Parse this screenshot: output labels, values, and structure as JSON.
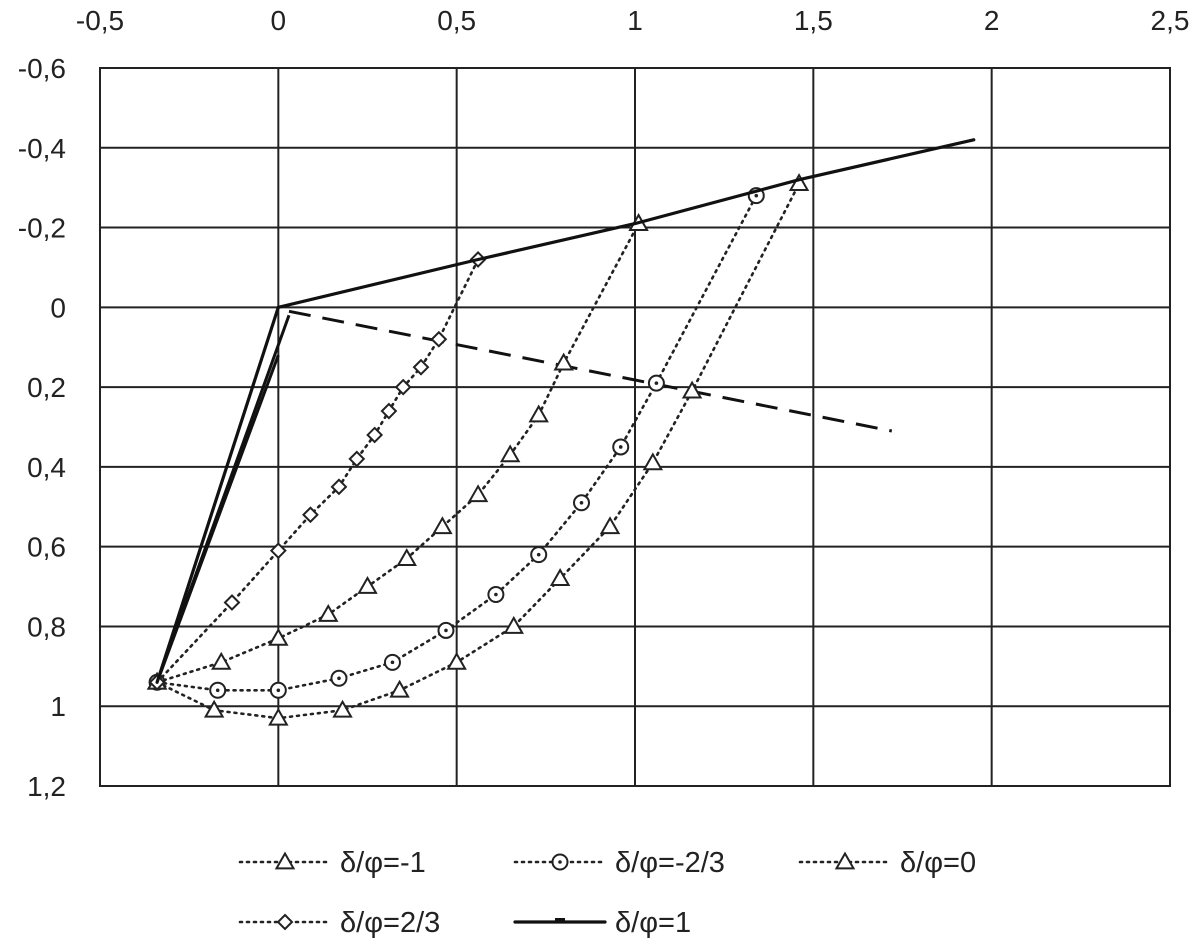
{
  "chart_data": {
    "type": "line",
    "title": "",
    "xlabel": "",
    "ylabel": "",
    "xlim": [
      -0.5,
      2.5
    ],
    "ylim": [
      -0.6,
      1.2
    ],
    "y_inverted": true,
    "x_axis_position": "top",
    "grid": true,
    "legend_position": "bottom",
    "x_ticks": [
      {
        "value": -0.5,
        "label": "-0,5"
      },
      {
        "value": 0,
        "label": "0"
      },
      {
        "value": 0.5,
        "label": "0,5"
      },
      {
        "value": 1,
        "label": "1"
      },
      {
        "value": 1.5,
        "label": "1,5"
      },
      {
        "value": 2,
        "label": "2"
      },
      {
        "value": 2.5,
        "label": "2,5"
      }
    ],
    "y_ticks": [
      {
        "value": -0.6,
        "label": "-0,6"
      },
      {
        "value": -0.4,
        "label": "-0,4"
      },
      {
        "value": -0.2,
        "label": "-0,2"
      },
      {
        "value": 0,
        "label": "0"
      },
      {
        "value": 0.2,
        "label": "0,2"
      },
      {
        "value": 0.4,
        "label": "0,4"
      },
      {
        "value": 0.6,
        "label": "0,6"
      },
      {
        "value": 0.8,
        "label": "0,8"
      },
      {
        "value": 1,
        "label": "1"
      },
      {
        "value": 1.2,
        "label": "1,2"
      }
    ],
    "series": [
      {
        "name": "δ/φ=-1",
        "marker": "triangle",
        "style": "dotted",
        "color": "#222222",
        "points": [
          [
            -0.34,
            0.94
          ],
          [
            -0.18,
            1.01
          ],
          [
            0,
            1.03
          ],
          [
            0.18,
            1.01
          ],
          [
            0.34,
            0.96
          ],
          [
            0.5,
            0.89
          ],
          [
            0.66,
            0.8
          ],
          [
            0.79,
            0.68
          ],
          [
            0.93,
            0.55
          ],
          [
            1.05,
            0.39
          ],
          [
            1.16,
            0.21
          ],
          [
            1.46,
            -0.31
          ]
        ]
      },
      {
        "name": "δ/φ=-2/3",
        "marker": "circle",
        "style": "dotted",
        "color": "#222222",
        "points": [
          [
            -0.34,
            0.94
          ],
          [
            -0.17,
            0.96
          ],
          [
            0,
            0.96
          ],
          [
            0.17,
            0.93
          ],
          [
            0.32,
            0.89
          ],
          [
            0.47,
            0.81
          ],
          [
            0.61,
            0.72
          ],
          [
            0.73,
            0.62
          ],
          [
            0.85,
            0.49
          ],
          [
            0.96,
            0.35
          ],
          [
            1.06,
            0.19
          ],
          [
            1.34,
            -0.28
          ]
        ]
      },
      {
        "name": "δ/φ=0",
        "marker": "triangle",
        "style": "dotted",
        "color": "#222222",
        "points": [
          [
            -0.34,
            0.94
          ],
          [
            -0.16,
            0.89
          ],
          [
            0,
            0.83
          ],
          [
            0.14,
            0.77
          ],
          [
            0.25,
            0.7
          ],
          [
            0.36,
            0.63
          ],
          [
            0.46,
            0.55
          ],
          [
            0.56,
            0.47
          ],
          [
            0.65,
            0.37
          ],
          [
            0.73,
            0.27
          ],
          [
            0.8,
            0.14
          ],
          [
            1.01,
            -0.21
          ]
        ]
      },
      {
        "name": "δ/φ=2/3",
        "marker": "diamond",
        "style": "dotted",
        "color": "#222222",
        "points": [
          [
            -0.34,
            0.94
          ],
          [
            -0.13,
            0.74
          ],
          [
            0,
            0.61
          ],
          [
            0.09,
            0.52
          ],
          [
            0.17,
            0.45
          ],
          [
            0.22,
            0.38
          ],
          [
            0.27,
            0.32
          ],
          [
            0.31,
            0.26
          ],
          [
            0.35,
            0.2
          ],
          [
            0.4,
            0.15
          ],
          [
            0.45,
            0.08
          ],
          [
            0.56,
            -0.12
          ]
        ]
      },
      {
        "name": "δ/φ=1",
        "marker": "none",
        "style": "solid",
        "color": "#111111",
        "points": [
          [
            -0.34,
            0.94
          ],
          [
            0,
            0
          ],
          [
            0.56,
            -0.12
          ],
          [
            1.0,
            -0.21
          ],
          [
            1.46,
            -0.32
          ],
          [
            1.95,
            -0.42
          ]
        ]
      }
    ],
    "extra_lines": [
      {
        "style": "solid",
        "color": "#111111",
        "points": [
          [
            -0.34,
            0.94
          ],
          [
            0.03,
            0.02
          ]
        ]
      },
      {
        "style": "solid",
        "color": "#111111",
        "points": [
          [
            -0.34,
            0.94
          ],
          [
            0,
            0.12
          ]
        ]
      },
      {
        "style": "dashed",
        "color": "#111111",
        "points": [
          [
            0.03,
            0.01
          ],
          [
            1.72,
            0.31
          ]
        ]
      }
    ]
  }
}
